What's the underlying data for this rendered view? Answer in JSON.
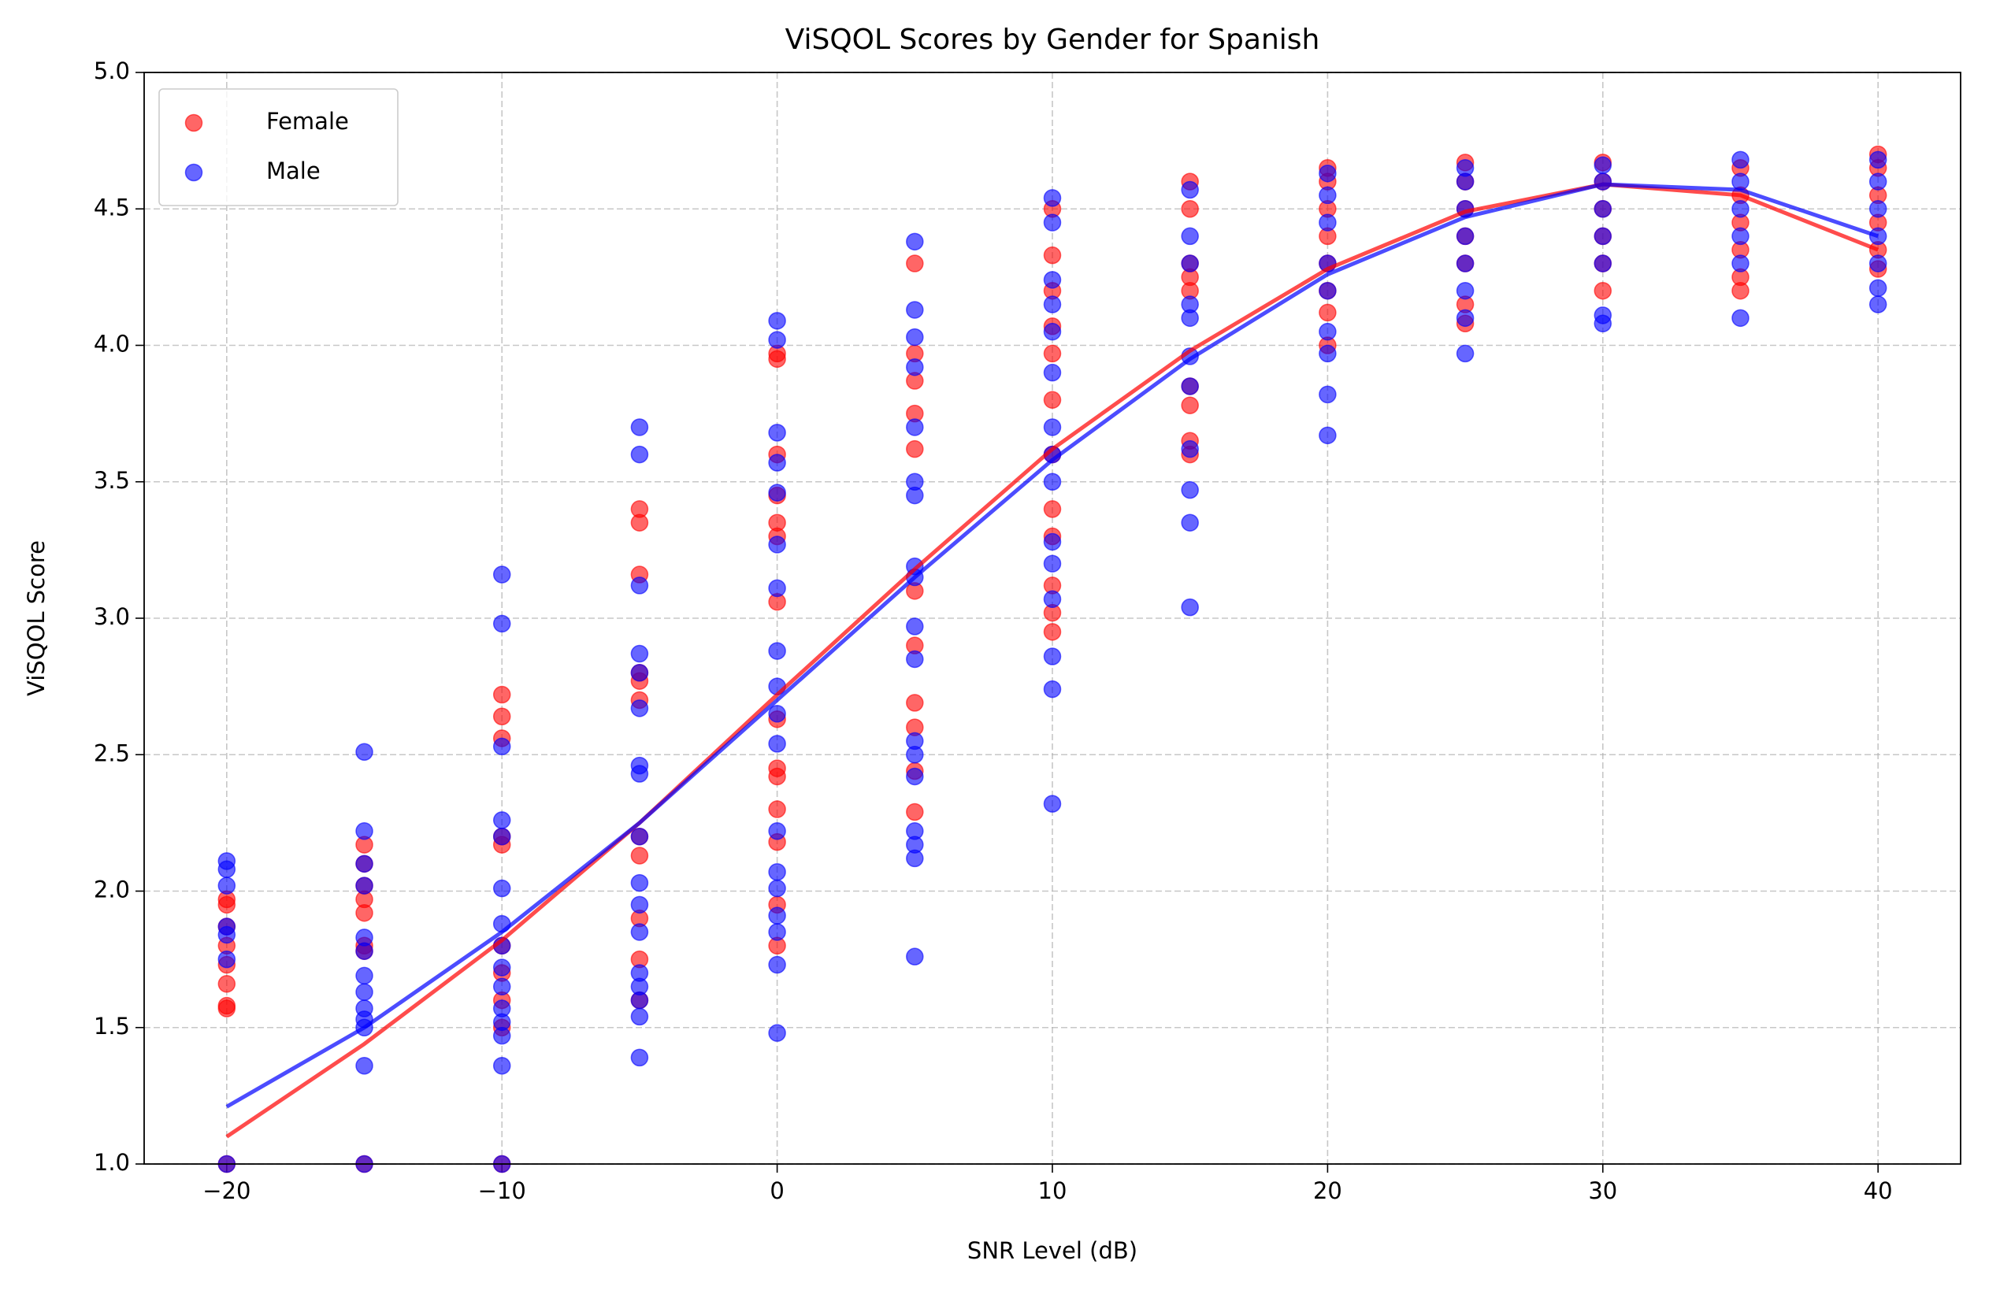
{
  "chart_data": {
    "type": "scatter",
    "title": "ViSQOL Scores by Gender for Spanish",
    "x_label": "SNR Level (dB)",
    "y_label": "ViSQOL Score",
    "xlim": [
      -23,
      43
    ],
    "ylim": [
      1,
      5
    ],
    "xticks": [
      {
        "value": -20,
        "label": "−20"
      },
      {
        "value": -10,
        "label": "−10"
      },
      0,
      10,
      20,
      30,
      40
    ],
    "yticks": [
      {
        "value": 1,
        "label": "1.0"
      },
      {
        "value": 1.5,
        "label": "1.5"
      },
      {
        "value": 2,
        "label": "2.0"
      },
      {
        "value": 2.5,
        "label": "2.5"
      },
      {
        "value": 3,
        "label": "3.0"
      },
      {
        "value": 3.5,
        "label": "3.5"
      },
      {
        "value": 4,
        "label": "4.0"
      },
      {
        "value": 4.5,
        "label": "4.5"
      },
      {
        "value": 5,
        "label": "5.0"
      }
    ],
    "grid": true,
    "legend": "upper-left",
    "series": [
      {
        "name": "Female",
        "color": "#ff0000",
        "x": [
          -20,
          -15,
          -10,
          -5,
          0,
          5,
          10,
          15,
          20,
          25,
          30,
          35,
          40
        ],
        "values": [
          [
            1.0,
            1.57,
            1.58,
            1.66,
            1.73,
            1.8,
            1.87,
            1.95,
            1.97
          ],
          [
            1.0,
            1.78,
            1.8,
            1.92,
            1.97,
            2.02,
            2.1,
            2.17
          ],
          [
            1.0,
            1.5,
            1.6,
            1.7,
            1.8,
            2.17,
            2.2,
            2.56,
            2.64,
            2.72
          ],
          [
            1.6,
            1.75,
            1.9,
            2.13,
            2.2,
            2.7,
            2.77,
            2.8,
            3.16,
            3.35,
            3.4
          ],
          [
            1.8,
            1.95,
            2.18,
            2.3,
            2.42,
            2.45,
            2.63,
            3.06,
            3.3,
            3.35,
            3.45,
            3.6,
            3.95,
            3.97
          ],
          [
            2.29,
            2.44,
            2.6,
            2.69,
            2.9,
            3.1,
            3.62,
            3.75,
            3.87,
            3.97,
            4.3
          ],
          [
            2.95,
            3.02,
            3.12,
            3.3,
            3.4,
            3.6,
            3.8,
            3.97,
            4.07,
            4.2,
            4.33,
            4.5
          ],
          [
            3.6,
            3.65,
            3.78,
            3.85,
            4.2,
            4.25,
            4.3,
            4.5,
            4.6
          ],
          [
            4.0,
            4.12,
            4.2,
            4.3,
            4.4,
            4.5,
            4.6,
            4.65
          ],
          [
            4.08,
            4.15,
            4.3,
            4.4,
            4.5,
            4.6,
            4.67
          ],
          [
            4.2,
            4.3,
            4.4,
            4.5,
            4.6,
            4.67
          ],
          [
            4.2,
            4.25,
            4.35,
            4.45,
            4.55,
            4.65
          ],
          [
            4.28,
            4.35,
            4.45,
            4.55,
            4.65,
            4.7
          ]
        ]
      },
      {
        "name": "Male",
        "color": "#0000ff",
        "x": [
          -20,
          -15,
          -10,
          -5,
          0,
          5,
          10,
          15,
          20,
          25,
          30,
          35,
          40
        ],
        "values": [
          [
            1.0,
            1.75,
            1.84,
            1.87,
            2.02,
            2.08,
            2.11
          ],
          [
            1.0,
            1.36,
            1.5,
            1.53,
            1.57,
            1.63,
            1.69,
            1.78,
            1.83,
            2.02,
            2.1,
            2.22,
            2.51
          ],
          [
            1.0,
            1.36,
            1.47,
            1.52,
            1.57,
            1.65,
            1.72,
            1.8,
            1.88,
            2.01,
            2.2,
            2.26,
            2.53,
            2.98,
            3.16
          ],
          [
            1.39,
            1.54,
            1.6,
            1.65,
            1.7,
            1.85,
            1.95,
            2.03,
            2.2,
            2.43,
            2.46,
            2.67,
            2.8,
            2.87,
            3.12,
            3.6,
            3.7
          ],
          [
            1.48,
            1.73,
            1.85,
            1.91,
            2.01,
            2.07,
            2.22,
            2.54,
            2.65,
            2.75,
            2.88,
            3.11,
            3.27,
            3.46,
            3.57,
            3.68,
            4.02,
            4.09
          ],
          [
            1.76,
            2.12,
            2.17,
            2.22,
            2.42,
            2.5,
            2.55,
            2.85,
            2.97,
            3.15,
            3.19,
            3.45,
            3.5,
            3.7,
            3.92,
            4.03,
            4.13,
            4.38
          ],
          [
            2.32,
            2.74,
            2.86,
            3.07,
            3.2,
            3.28,
            3.5,
            3.6,
            3.7,
            3.9,
            4.05,
            4.15,
            4.24,
            4.45,
            4.54
          ],
          [
            3.04,
            3.35,
            3.47,
            3.62,
            3.85,
            3.96,
            4.1,
            4.15,
            4.3,
            4.4,
            4.57
          ],
          [
            3.67,
            3.82,
            3.97,
            4.05,
            4.2,
            4.3,
            4.45,
            4.55,
            4.63
          ],
          [
            3.97,
            4.1,
            4.2,
            4.3,
            4.4,
            4.5,
            4.6,
            4.65
          ],
          [
            4.08,
            4.11,
            4.3,
            4.4,
            4.5,
            4.6,
            4.66
          ],
          [
            4.1,
            4.3,
            4.4,
            4.5,
            4.6,
            4.68
          ],
          [
            4.15,
            4.21,
            4.3,
            4.4,
            4.5,
            4.6,
            4.68
          ]
        ]
      }
    ],
    "lines": [
      {
        "color": "#ff0000",
        "x": [
          -20,
          -15,
          -10,
          -5,
          0,
          5,
          10,
          15,
          20,
          25,
          30,
          35,
          40
        ],
        "values": [
          1.1,
          1.44,
          1.82,
          2.25,
          2.72,
          3.18,
          3.62,
          3.98,
          4.28,
          4.49,
          4.59,
          4.55,
          4.35
        ]
      },
      {
        "color": "#0000ff",
        "x": [
          -20,
          -15,
          -10,
          -5,
          0,
          5,
          10,
          15,
          20,
          25,
          30,
          35,
          40
        ],
        "values": [
          1.21,
          1.5,
          1.85,
          2.25,
          2.7,
          3.15,
          3.58,
          3.95,
          4.26,
          4.47,
          4.59,
          4.57,
          4.4
        ]
      }
    ]
  }
}
